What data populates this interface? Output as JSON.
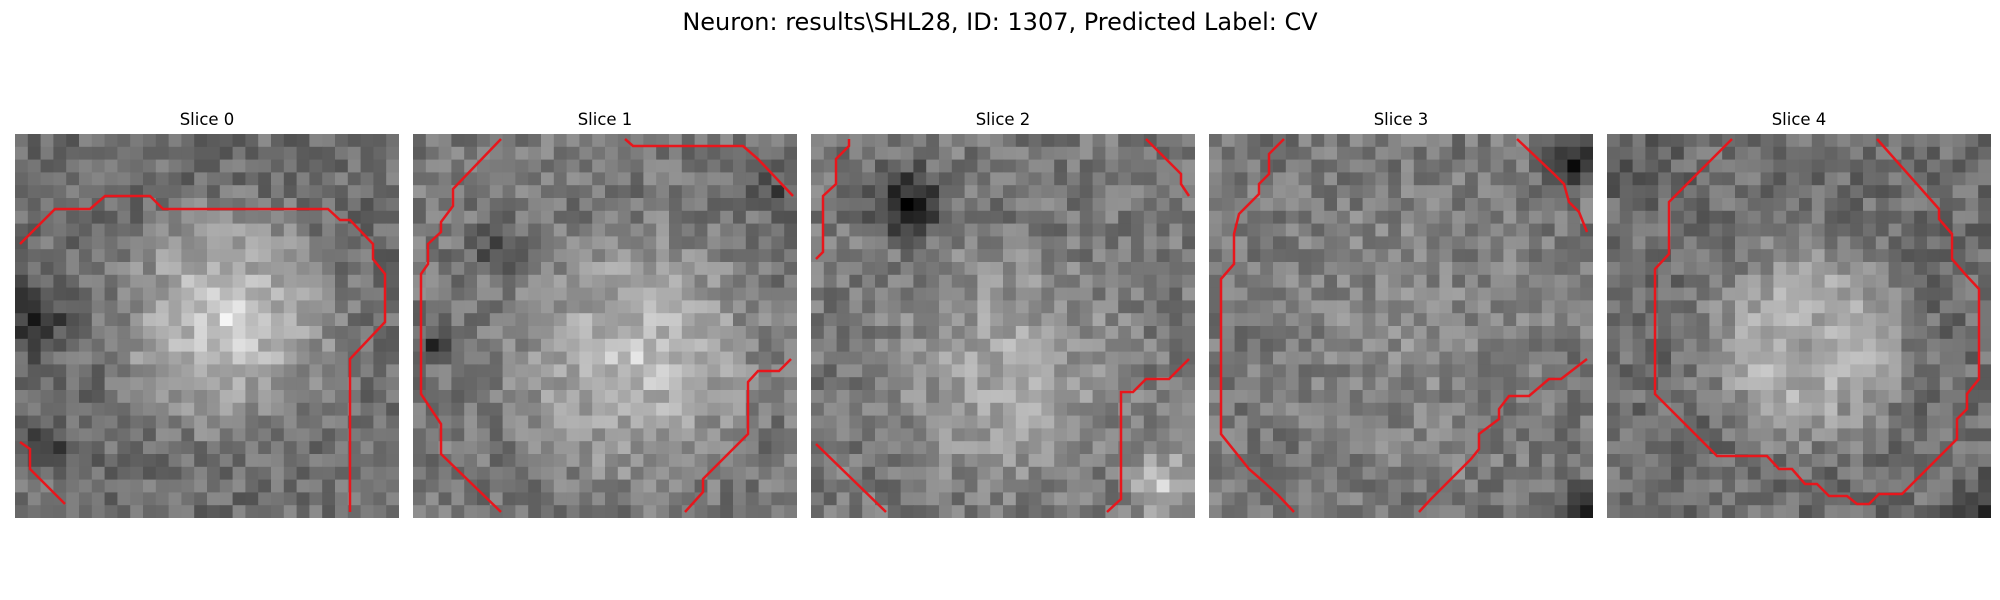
{
  "figure": {
    "title": "Neuron: results\\SHL28, ID: 1307, Predicted Label: CV",
    "overlay_color": "#e8161c",
    "colormap": "gray"
  },
  "slices": [
    {
      "title": "Slice 0"
    },
    {
      "title": "Slice 1"
    },
    {
      "title": "Slice 2"
    },
    {
      "title": "Slice 3"
    },
    {
      "title": "Slice 4"
    }
  ]
}
